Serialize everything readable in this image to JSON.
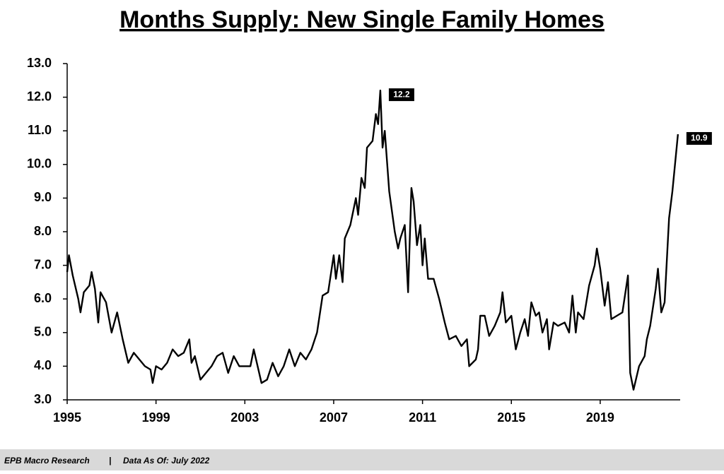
{
  "chart_data": {
    "type": "line",
    "title": "Months Supply: New Single Family Homes",
    "x": [
      1995.0,
      1995.08,
      1995.25,
      1995.5,
      1995.6,
      1995.75,
      1996.0,
      1996.1,
      1996.25,
      1996.4,
      1996.5,
      1996.75,
      1997.0,
      1997.25,
      1997.5,
      1997.75,
      1998.0,
      1998.25,
      1998.5,
      1998.75,
      1998.85,
      1999.0,
      1999.25,
      1999.5,
      1999.75,
      2000.0,
      2000.25,
      2000.5,
      2000.6,
      2000.75,
      2001.0,
      2001.25,
      2001.5,
      2001.75,
      2002.0,
      2002.25,
      2002.5,
      2002.75,
      2003.0,
      2003.25,
      2003.4,
      2003.75,
      2004.0,
      2004.25,
      2004.5,
      2004.75,
      2005.0,
      2005.25,
      2005.5,
      2005.75,
      2006.0,
      2006.25,
      2006.5,
      2006.75,
      2007.0,
      2007.1,
      2007.25,
      2007.4,
      2007.5,
      2007.75,
      2008.0,
      2008.1,
      2008.25,
      2008.4,
      2008.5,
      2008.75,
      2008.9,
      2009.0,
      2009.1,
      2009.2,
      2009.3,
      2009.5,
      2009.75,
      2009.9,
      2010.0,
      2010.2,
      2010.35,
      2010.5,
      2010.6,
      2010.75,
      2010.9,
      2011.0,
      2011.1,
      2011.25,
      2011.5,
      2011.75,
      2012.0,
      2012.2,
      2012.5,
      2012.75,
      2013.0,
      2013.1,
      2013.4,
      2013.5,
      2013.6,
      2013.8,
      2014.0,
      2014.25,
      2014.5,
      2014.6,
      2014.75,
      2015.0,
      2015.2,
      2015.4,
      2015.6,
      2015.75,
      2015.9,
      2016.1,
      2016.25,
      2016.4,
      2016.6,
      2016.7,
      2016.9,
      2017.1,
      2017.4,
      2017.6,
      2017.75,
      2017.9,
      2018.0,
      2018.25,
      2018.5,
      2018.75,
      2018.85,
      2019.0,
      2019.2,
      2019.35,
      2019.5,
      2019.75,
      2020.0,
      2020.25,
      2020.35,
      2020.5,
      2020.75,
      2021.0,
      2021.1,
      2021.25,
      2021.5,
      2021.6,
      2021.75,
      2021.9,
      2022.1,
      2022.25,
      2022.5
    ],
    "series": [
      {
        "color": "#000000",
        "values": [
          6.8,
          7.3,
          6.7,
          6.0,
          5.6,
          6.2,
          6.4,
          6.8,
          6.3,
          5.3,
          6.2,
          5.9,
          5.0,
          5.6,
          4.8,
          4.1,
          4.4,
          4.2,
          4.0,
          3.9,
          3.5,
          4.0,
          3.9,
          4.1,
          4.5,
          4.3,
          4.4,
          4.8,
          4.1,
          4.3,
          3.6,
          3.8,
          4.0,
          4.3,
          4.4,
          3.8,
          4.3,
          4.0,
          4.0,
          4.0,
          4.5,
          3.5,
          3.6,
          4.1,
          3.7,
          4.0,
          4.5,
          4.0,
          4.4,
          4.2,
          4.5,
          5.0,
          6.1,
          6.2,
          7.3,
          6.6,
          7.3,
          6.5,
          7.8,
          8.2,
          9.0,
          8.5,
          9.6,
          9.3,
          10.5,
          10.7,
          11.5,
          11.2,
          12.2,
          10.5,
          11.0,
          9.2,
          8.0,
          7.5,
          7.8,
          8.2,
          6.2,
          9.3,
          8.9,
          7.6,
          8.2,
          7.0,
          7.8,
          6.6,
          6.6,
          6.0,
          5.3,
          4.8,
          4.9,
          4.6,
          4.8,
          4.0,
          4.2,
          4.5,
          5.5,
          5.5,
          4.9,
          5.2,
          5.6,
          6.2,
          5.3,
          5.5,
          4.5,
          5.0,
          5.4,
          4.9,
          5.9,
          5.5,
          5.6,
          5.0,
          5.4,
          4.5,
          5.3,
          5.2,
          5.3,
          5.0,
          6.1,
          5.0,
          5.6,
          5.4,
          6.4,
          7.0,
          7.5,
          6.9,
          5.8,
          6.5,
          5.4,
          5.5,
          5.6,
          6.7,
          3.8,
          3.3,
          4.0,
          4.3,
          4.8,
          5.2,
          6.3,
          6.9,
          5.6,
          5.9,
          8.4,
          9.2,
          10.9
        ]
      }
    ],
    "annotations": [
      {
        "x": 2009.1,
        "y": 12.2
      },
      {
        "x": 2022.5,
        "y": 10.9
      }
    ],
    "xlim": [
      1995,
      2022.6
    ],
    "xticks": [
      1995,
      1999,
      2003,
      2007,
      2011,
      2015,
      2019
    ],
    "ylim": [
      3,
      13
    ],
    "yticks": [
      {
        "value": 3,
        "label": "3.0"
      },
      {
        "value": 4,
        "label": "4.0"
      },
      {
        "value": 5,
        "label": "5.0"
      },
      {
        "value": 6,
        "label": "6.0"
      },
      {
        "value": 7,
        "label": "7.0"
      },
      {
        "value": 8,
        "label": "8.0"
      },
      {
        "value": 9,
        "label": "9.0"
      },
      {
        "value": 10,
        "label": "10.0"
      },
      {
        "value": 11,
        "label": "11.0"
      },
      {
        "value": 12,
        "label": "12.0"
      },
      {
        "value": 13,
        "label": "13.0"
      }
    ],
    "grid": false
  },
  "footer": {
    "source": "EPB Macro Research",
    "separator": "|",
    "date": "Data As Of: July 2022"
  }
}
